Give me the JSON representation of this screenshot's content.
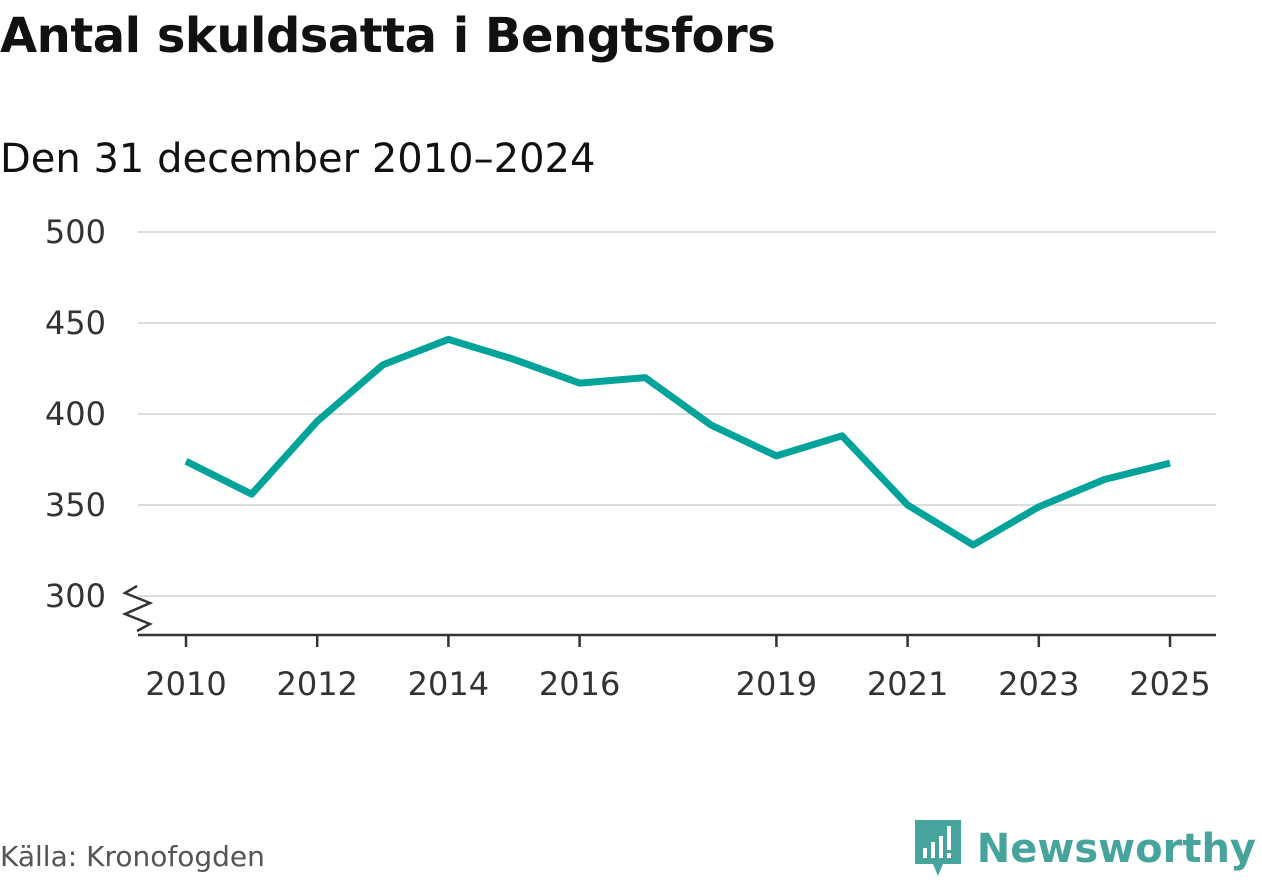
{
  "title": "Antal skuldsatta i Bengtsfors",
  "subtitle": "Den 31 december 2010–2024",
  "source": "Källa: Kronofogden",
  "brand": "Newsworthy",
  "colors": {
    "line": "#00a39a",
    "grid": "#dddddd",
    "axis": "#333333",
    "brand": "#46a49c"
  },
  "chart_data": {
    "type": "line",
    "title": "Antal skuldsatta i Bengtsfors",
    "subtitle": "Den 31 december 2010–2024",
    "xlabel": "",
    "ylabel": "",
    "x_ticks": [
      "2010",
      "2012",
      "2014",
      "2016",
      "2019",
      "2021",
      "2023",
      "2025"
    ],
    "y_ticks": [
      "300",
      "350",
      "400",
      "450",
      "500"
    ],
    "ylim": [
      300,
      500
    ],
    "axis_break": true,
    "grid": true,
    "series": [
      {
        "name": "Antal skuldsatta",
        "x": [
          2010,
          2011,
          2012,
          2013,
          2014,
          2015,
          2016,
          2017,
          2018,
          2019,
          2020,
          2021,
          2022,
          2023,
          2024,
          2025
        ],
        "values": [
          374,
          356,
          396,
          427,
          441,
          430,
          417,
          420,
          394,
          377,
          388,
          350,
          328,
          349,
          364,
          373
        ]
      }
    ]
  }
}
